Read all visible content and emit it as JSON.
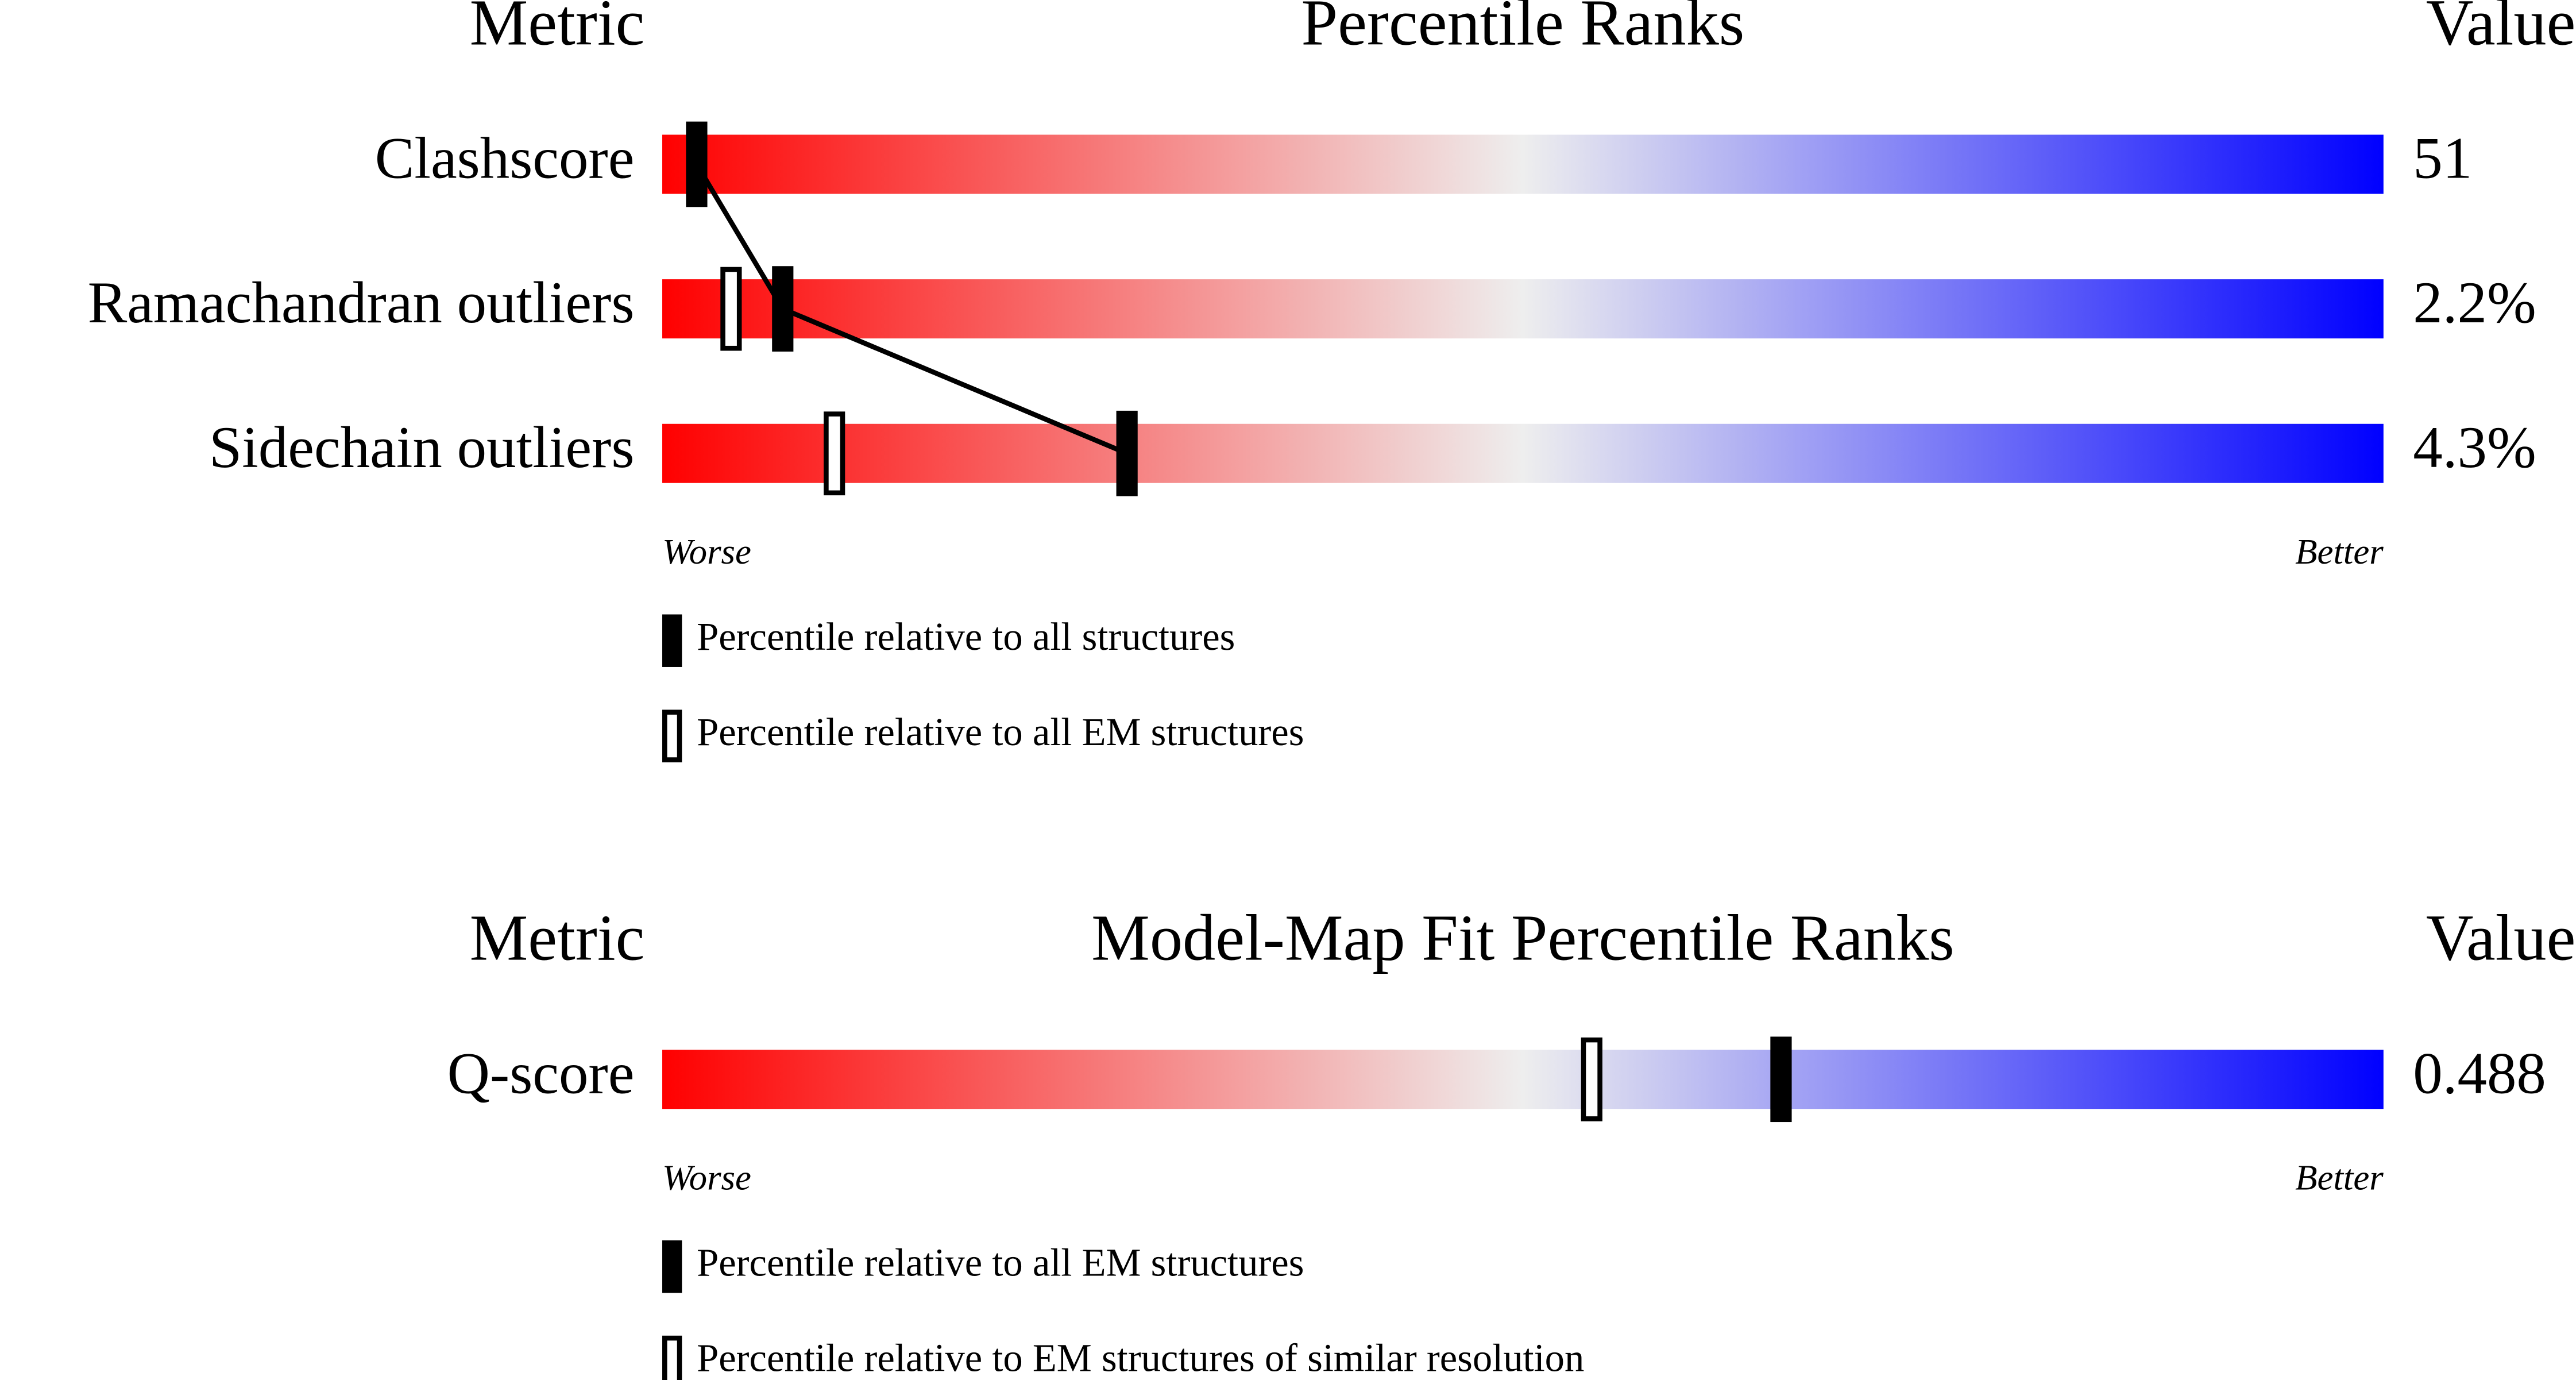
{
  "chart_data": [
    {
      "type": "percentile",
      "header": {
        "metric": "Metric",
        "title": "Percentile Ranks",
        "value": "Value"
      },
      "xlim": [
        0,
        100
      ],
      "worse": "Worse",
      "better": "Better",
      "colors": [
        "#ff0000",
        "#eeeeee",
        "#0000ff"
      ],
      "connect": true,
      "categories": [
        "Clashscore",
        "Ramachandran outliers",
        "Sidechain outliers"
      ],
      "metric_values": [
        51,
        {
          "value": 2.2,
          "label": "2.2%"
        },
        {
          "value": 4.3,
          "label": "4.3%"
        }
      ],
      "series": [
        {
          "name": "Percentile relative to all structures",
          "style": "filled",
          "color": "#000000",
          "values": [
            2,
            7,
            27
          ]
        },
        {
          "name": "Percentile relative to all EM structures",
          "style": "hollow",
          "color": "#000000",
          "values": [
            null,
            4,
            10
          ]
        }
      ]
    },
    {
      "type": "percentile",
      "header": {
        "metric": "Metric",
        "title": "Model-Map Fit Percentile Ranks",
        "value": "Value"
      },
      "xlim": [
        0,
        100
      ],
      "worse": "Worse",
      "better": "Better",
      "colors": [
        "#ff0000",
        "#eeeeee",
        "#0000ff"
      ],
      "connect": true,
      "categories": [
        "Q-score"
      ],
      "metric_values": [
        0.488
      ],
      "series": [
        {
          "name": "Percentile relative to all EM structures",
          "style": "filled",
          "color": "#000000",
          "values": [
            65
          ]
        },
        {
          "name": "Percentile relative to EM structures of similar resolution",
          "style": "hollow",
          "color": "#000000",
          "values": [
            54
          ]
        }
      ]
    }
  ]
}
